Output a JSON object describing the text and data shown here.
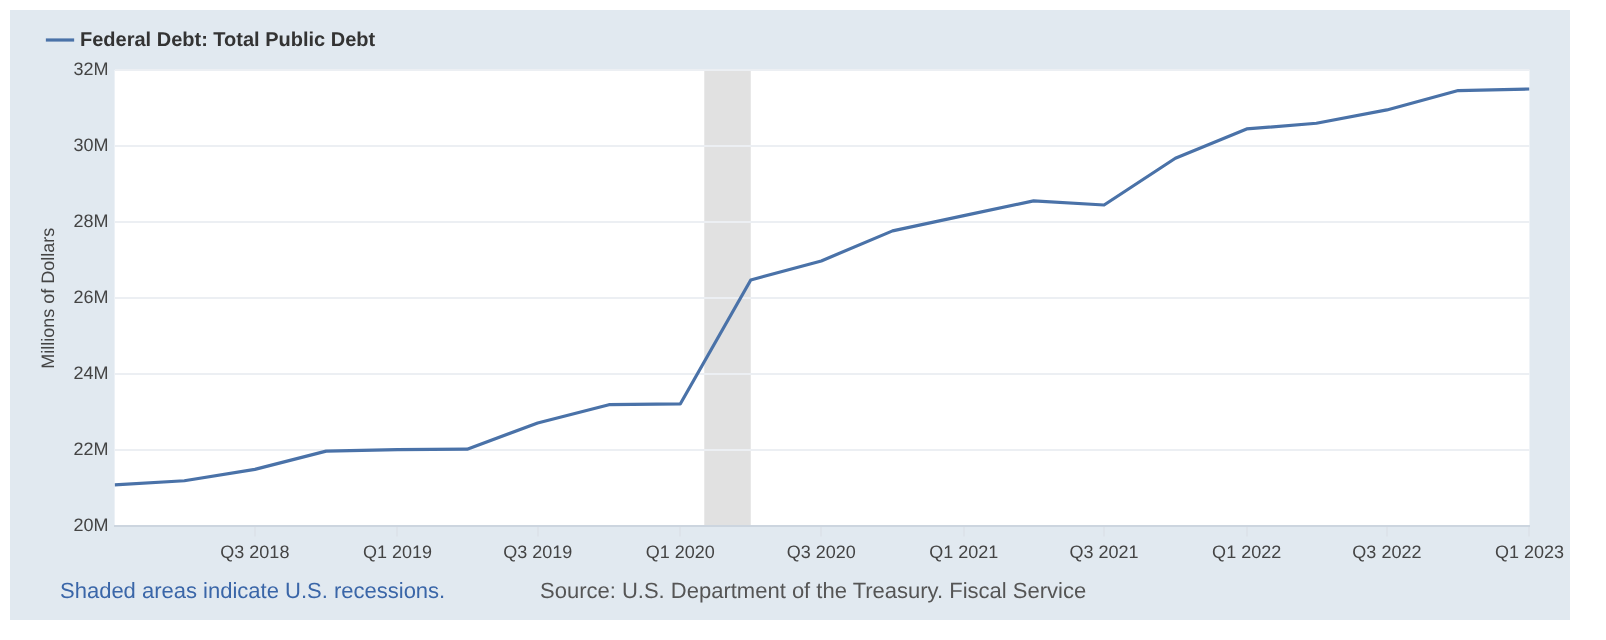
{
  "chart_data": {
    "type": "line",
    "ylabel": "Millions of Dollars",
    "legend": "top left",
    "grid": "y",
    "marker": "none",
    "line_style": "solid",
    "x": [
      "2018-01-01",
      "2018-04-01",
      "2018-07-01",
      "2018-10-01",
      "2019-01-01",
      "2019-04-01",
      "2019-07-01",
      "2019-10-01",
      "2020-01-01",
      "2020-04-01",
      "2020-07-01",
      "2020-10-01",
      "2021-01-01",
      "2021-04-01",
      "2021-07-01",
      "2021-10-01",
      "2022-01-01",
      "2022-04-01",
      "2022-07-01",
      "2022-10-01",
      "2023-01-01"
    ],
    "series": [
      {
        "name": "Federal Debt: Total Public Debt",
        "color": "#4a72a8",
        "values": [
          21.09,
          21.2,
          21.5,
          21.98,
          22.02,
          22.03,
          22.72,
          23.2,
          23.22,
          26.48,
          26.98,
          27.77,
          28.17,
          28.56,
          28.45,
          29.68,
          30.45,
          30.6,
          30.95,
          31.46,
          31.5
        ]
      }
    ],
    "xlim": [
      "2018-01-01",
      "2023-01-01"
    ],
    "xticks": [
      {
        "value": "2018-07-01",
        "label": "Q3 2018"
      },
      {
        "value": "2019-01-01",
        "label": "Q1 2019"
      },
      {
        "value": "2019-07-01",
        "label": "Q3 2019"
      },
      {
        "value": "2020-01-01",
        "label": "Q1 2020"
      },
      {
        "value": "2020-07-01",
        "label": "Q3 2020"
      },
      {
        "value": "2021-01-01",
        "label": "Q1 2021"
      },
      {
        "value": "2021-07-01",
        "label": "Q3 2021"
      },
      {
        "value": "2022-01-01",
        "label": "Q1 2022"
      },
      {
        "value": "2022-07-01",
        "label": "Q3 2022"
      },
      {
        "value": "2023-01-01",
        "label": "Q1 2023"
      }
    ],
    "ylim": [
      20,
      32
    ],
    "yticks": [
      {
        "value": 20,
        "label": "20M"
      },
      {
        "value": 22,
        "label": "22M"
      },
      {
        "value": 24,
        "label": "24M"
      },
      {
        "value": 26,
        "label": "26M"
      },
      {
        "value": 28,
        "label": "28M"
      },
      {
        "value": 30,
        "label": "30M"
      },
      {
        "value": 32,
        "label": "32M"
      }
    ],
    "bands": [
      {
        "axis": "x",
        "from": "2020-02-01",
        "to": "2020-04-01",
        "color": "#e1e1e1"
      }
    ],
    "annotations": [
      "Shaded areas indicate U.S. recessions.",
      "Source: U.S. Department of the Treasury. Fiscal Service"
    ]
  }
}
